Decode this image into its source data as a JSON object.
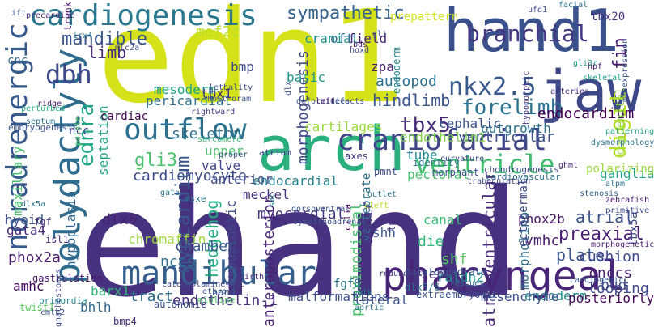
{
  "words": [
    {
      "text": "ehand",
      "color": "#46327e"
    },
    {
      "text": "edn1",
      "color": "#d5e21a"
    },
    {
      "text": "hand1",
      "color": "#3b518b"
    },
    {
      "text": "jaw",
      "color": "#3e4989"
    },
    {
      "text": "arch",
      "color": "#2ab07f"
    },
    {
      "text": "pharyngeal",
      "color": "#482576"
    },
    {
      "text": "polydactyly",
      "color": "#2f6c8e"
    },
    {
      "text": "mandibular",
      "color": "#355f8d"
    },
    {
      "text": "cardiogenesis",
      "color": "#2a788e"
    },
    {
      "text": "noradrenergic",
      "color": "#375a8c"
    },
    {
      "text": "craniofacial",
      "color": "#404688"
    },
    {
      "text": "outflow",
      "color": "#2c728e"
    },
    {
      "text": "ventricle",
      "color": "#42be71"
    },
    {
      "text": "dbh",
      "color": "#3e4989"
    },
    {
      "text": "nkx2.5",
      "color": "#38598c"
    },
    {
      "text": "branchial",
      "color": "#453781"
    },
    {
      "text": "digit",
      "color": "#b5de2b"
    },
    {
      "text": "ednra",
      "color": "#21a685"
    },
    {
      "text": "tbx5",
      "color": "#472c7a"
    },
    {
      "text": "forelimb",
      "color": "#2c728e"
    },
    {
      "text": "myocardium",
      "color": "#3a548c"
    },
    {
      "text": "sympathetic",
      "color": "#33628d"
    },
    {
      "text": "fin",
      "color": "#481c6e"
    },
    {
      "text": "gli3",
      "color": "#4ac16d"
    },
    {
      "text": "mandible",
      "color": "#3a548c"
    },
    {
      "text": "limb",
      "color": "#472d7b"
    },
    {
      "text": "preaxial",
      "color": "#481f70"
    },
    {
      "text": "hindlimb",
      "color": "#3a548c"
    },
    {
      "text": "atrioventricular",
      "color": "#482878"
    },
    {
      "text": "mef2c",
      "color": "#b8de29"
    },
    {
      "text": "morphogenesis",
      "color": "#3f4889"
    },
    {
      "text": "autopod",
      "color": "#2c718e"
    },
    {
      "text": "cardiomyocyte",
      "color": "#3d4e8a"
    },
    {
      "text": "endocardium",
      "color": "#440154"
    },
    {
      "text": "ventricular",
      "color": "#3b528b"
    },
    {
      "text": "cranial",
      "color": "#1f968b"
    },
    {
      "text": "field",
      "color": "#482475"
    },
    {
      "text": "oft",
      "color": "#2e6e8e"
    },
    {
      "text": "zpa",
      "color": "#481b6d"
    },
    {
      "text": "skeleton",
      "color": "#2d708e"
    },
    {
      "text": "cartilages",
      "color": "#9bd93c"
    },
    {
      "text": "endothelin1",
      "color": "#81d34d"
    },
    {
      "text": "tube",
      "color": "#23898e"
    },
    {
      "text": "cephalic",
      "color": "#3a548c"
    },
    {
      "text": "outgrowth",
      "color": "#2d708e"
    },
    {
      "text": "septation",
      "color": "#22a785"
    },
    {
      "text": "mesoderm",
      "color": "#20a386"
    },
    {
      "text": "pericardial",
      "color": "#2c728e"
    },
    {
      "text": "cardiac",
      "color": "#440154"
    },
    {
      "text": "ncc",
      "color": "#3f4788"
    },
    {
      "text": "cnc",
      "color": "#2e6d8e"
    },
    {
      "text": "bmp",
      "color": "#3e4a89"
    },
    {
      "text": "basic",
      "color": "#1f978b"
    },
    {
      "text": "tbx1",
      "color": "#46337e"
    },
    {
      "text": "upper",
      "color": "#4ec36b"
    },
    {
      "text": "valve",
      "color": "#404688"
    },
    {
      "text": "anterior",
      "color": "#3e4989"
    },
    {
      "text": "endocardial",
      "color": "#27808e"
    },
    {
      "text": "meckel",
      "color": "#46327e"
    },
    {
      "text": "pectoral",
      "color": "#48c16e"
    },
    {
      "text": "vertebrate",
      "color": "#2c738e"
    },
    {
      "text": "dlx6",
      "color": "#482071"
    },
    {
      "text": "myocardial",
      "color": "#453781"
    },
    {
      "text": "hedgehog",
      "color": "#25ab82"
    },
    {
      "text": "hypoplastic",
      "color": "#3e4c8a"
    },
    {
      "text": "anteroposterior",
      "color": "#482475"
    },
    {
      "text": "proximodistal",
      "color": "#4ac16d"
    },
    {
      "text": "sonic",
      "color": "#453882"
    },
    {
      "text": "shh",
      "color": "#3b528b"
    },
    {
      "text": "canal",
      "color": "#3dbc74"
    },
    {
      "text": "die",
      "color": "#31b57b"
    },
    {
      "text": "phox2b",
      "color": "#481668"
    },
    {
      "text": "atrial",
      "color": "#3b528b"
    },
    {
      "text": "vmhc",
      "color": "#481f70"
    },
    {
      "text": "plate",
      "color": "#3b528b"
    },
    {
      "text": "cushion",
      "color": "#3f4889"
    },
    {
      "text": "cnccs",
      "color": "#482071"
    },
    {
      "text": "bud",
      "color": "#3e4989"
    },
    {
      "text": "chromaffin",
      "color": "#9dd93b"
    },
    {
      "text": "chamber",
      "color": "#38598c"
    },
    {
      "text": "nccs",
      "color": "#2d708e"
    },
    {
      "text": "shf",
      "color": "#5ec962"
    },
    {
      "text": "septal",
      "color": "#46327e"
    },
    {
      "text": "raldh2",
      "color": "#21908d"
    },
    {
      "text": "fgf8",
      "color": "#2a788e"
    },
    {
      "text": "morpholino",
      "color": "#2e6d8e"
    },
    {
      "text": "endoderm",
      "color": "#23888e"
    },
    {
      "text": "looping",
      "color": "#404688"
    },
    {
      "text": "gata4",
      "color": "#472a7a"
    },
    {
      "text": "hypoplasia",
      "color": "#31678e"
    },
    {
      "text": "maxillary",
      "color": "#48c16e"
    },
    {
      "text": "hyoid",
      "color": "#3b528b"
    },
    {
      "text": "phox2a",
      "color": "#481b6d"
    },
    {
      "text": "amhc",
      "color": "#450559"
    },
    {
      "text": "barx1",
      "color": "#35b779"
    },
    {
      "text": "bhlh",
      "color": "#31668e"
    },
    {
      "text": "tract",
      "color": "#2e6d8e"
    },
    {
      "text": "endothelin-1",
      "color": "#472d7b"
    },
    {
      "text": "malformations",
      "color": "#3d4d8a"
    },
    {
      "text": "lateral",
      "color": "#3c4f8a"
    },
    {
      "text": "mesenchyme",
      "color": "#3c4f8a"
    },
    {
      "text": "posteriorly",
      "color": "#46075a"
    },
    {
      "text": "ectodermal",
      "color": "#3e4a89"
    },
    {
      "text": "ganglia",
      "color": "#20a486"
    },
    {
      "text": "polarizing",
      "color": "#9bd93c"
    },
    {
      "text": "tbx5a",
      "color": "#3e4989"
    },
    {
      "text": "congenital",
      "color": "#95d840"
    },
    {
      "text": "tbx20",
      "color": "#46337e"
    },
    {
      "text": "trunk",
      "color": "#471365"
    },
    {
      "text": "fgf",
      "color": "#46327e"
    },
    {
      "text": "isl1",
      "color": "#482878"
    },
    {
      "text": "prepattern",
      "color": "#d2e21b"
    },
    {
      "text": "endoderm",
      "color": "#23888e"
    },
    {
      "text": "chondrogenesis",
      "color": "#3e4989"
    },
    {
      "text": "cardiovascular",
      "color": "#2d708e"
    },
    {
      "text": "trabeculation",
      "color": "#404688"
    },
    {
      "text": "alpm",
      "color": "#2c728e"
    },
    {
      "text": "stenosis",
      "color": "#33638d"
    },
    {
      "text": "zebrafish",
      "color": "#481a6c"
    },
    {
      "text": "primitive",
      "color": "#3e4989"
    },
    {
      "text": "sarcomere",
      "color": "#3aba76"
    },
    {
      "text": "atrium",
      "color": "#443983"
    },
    {
      "text": "proper",
      "color": "#38598c"
    },
    {
      "text": "axes",
      "color": "#453781"
    },
    {
      "text": "identity",
      "color": "#2c738e"
    },
    {
      "text": "curvature",
      "color": "#3f4889"
    },
    {
      "text": "morphant",
      "color": "#3c4f8a"
    },
    {
      "text": "cleft",
      "color": "#b5de2b"
    },
    {
      "text": "palatoquadrate",
      "color": "#3a548c"
    },
    {
      "text": "redundant",
      "color": "#463480"
    },
    {
      "text": "dlx5/6",
      "color": "#2d718e"
    },
    {
      "text": "rescues",
      "color": "#2f6c8e"
    },
    {
      "text": "extraembryonic",
      "color": "#3b528b"
    },
    {
      "text": "lpm",
      "color": "#472f7d"
    },
    {
      "text": "yolk",
      "color": "#2d718e"
    },
    {
      "text": "aortic",
      "color": "#2c728e"
    },
    {
      "text": "birth",
      "color": "#482677"
    },
    {
      "text": "hand",
      "color": "#38598c"
    },
    {
      "text": "midline",
      "color": "#4ec36b"
    },
    {
      "text": "catecholaminergic",
      "color": "#3f4788"
    },
    {
      "text": "etsrp",
      "color": "#3a548c"
    },
    {
      "text": "autonomic",
      "color": "#3b528b"
    },
    {
      "text": "bmp4",
      "color": "#472e7c"
    },
    {
      "text": "twist1",
      "color": "#5ec962"
    },
    {
      "text": "gastrulation",
      "color": "#481a6c"
    },
    {
      "text": "primordia",
      "color": "#23898e"
    },
    {
      "text": "cmlc2",
      "color": "#3b528b"
    },
    {
      "text": "gnathostomes",
      "color": "#3f4788"
    },
    {
      "text": "msxe",
      "color": "#2d718e"
    },
    {
      "text": "gata",
      "color": "#2d718e"
    },
    {
      "text": "pmnt",
      "color": "#3e4989"
    },
    {
      "text": "dorsoventral",
      "color": "#39568c"
    },
    {
      "text": "sympathoadrenal",
      "color": "#3b528b"
    },
    {
      "text": "cilia",
      "color": "#440154"
    },
    {
      "text": "sac",
      "color": "#25848e"
    },
    {
      "text": "outlet",
      "color": "#2c728e"
    },
    {
      "text": "dlx5a",
      "color": "#2c738e"
    },
    {
      "text": "perturbed",
      "color": "#29af7f"
    },
    {
      "text": "septum",
      "color": "#2d708e"
    },
    {
      "text": "embryogenesis",
      "color": "#3b528b"
    },
    {
      "text": "ridge",
      "color": "#481f70"
    },
    {
      "text": "palate",
      "color": "#4ec36b"
    },
    {
      "text": "rightward",
      "color": "#433e85"
    },
    {
      "text": "holt-oram",
      "color": "#3b528b"
    },
    {
      "text": "lethality",
      "color": "#3f4788"
    },
    {
      "text": "precardiac",
      "color": "#472e7c"
    },
    {
      "text": "irx4",
      "color": "#2c728e"
    },
    {
      "text": "mlc2a",
      "color": "#3e4989"
    },
    {
      "text": "ift",
      "color": "#38598c"
    },
    {
      "text": "dlx",
      "color": "#3b528b"
    },
    {
      "text": "deformities",
      "color": "#3a548c"
    },
    {
      "text": "left",
      "color": "#481668"
    },
    {
      "text": "defects",
      "color": "#3e4c8a"
    },
    {
      "text": "tbds",
      "color": "#481f70"
    },
    {
      "text": "hoxd",
      "color": "#3e4989"
    },
    {
      "text": "gli",
      "color": "#38598c"
    },
    {
      "text": "arteries",
      "color": "#46307e"
    },
    {
      "text": "facial",
      "color": "#2d718e"
    },
    {
      "text": "ufd1",
      "color": "#3f4889"
    },
    {
      "text": "hpf",
      "color": "#481f70"
    },
    {
      "text": "skeletal",
      "color": "#1fa188"
    },
    {
      "text": "gli3r",
      "color": "#1f968b"
    },
    {
      "text": "dysmorphology",
      "color": "#2c728e"
    },
    {
      "text": "patterning",
      "color": "#20a486"
    },
    {
      "text": "morphogenetic",
      "color": "#481b6d"
    },
    {
      "text": "ghmt",
      "color": "#482677"
    },
    {
      "text": "cardiogenic",
      "color": "#38598c"
    },
    {
      "text": "misexpression",
      "color": "#3b528b"
    },
    {
      "text": "hypomorphic",
      "color": "#453882"
    }
  ]
}
